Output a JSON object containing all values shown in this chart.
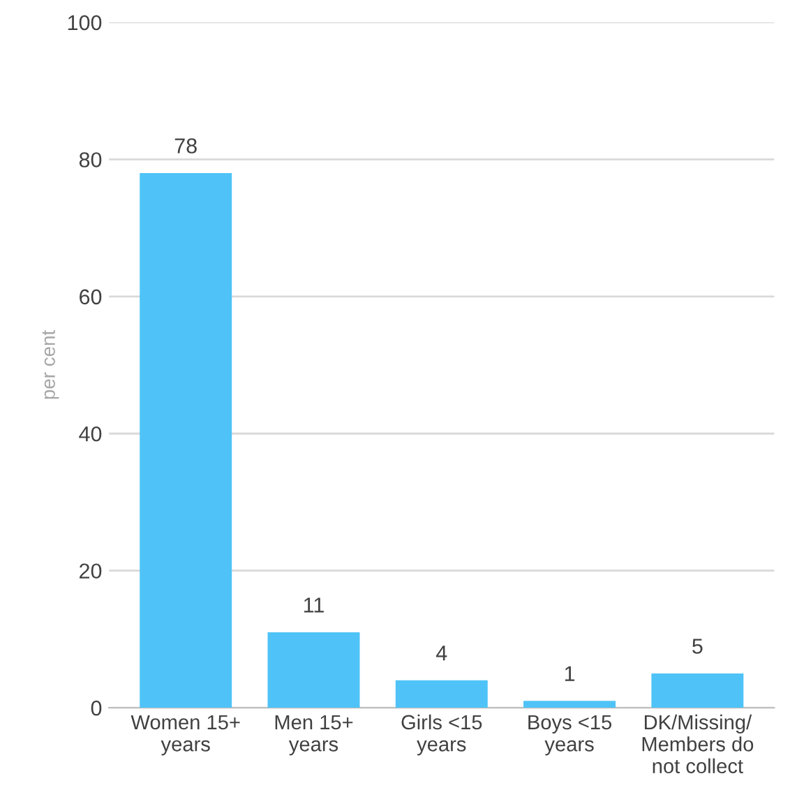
{
  "chart_data": {
    "type": "bar",
    "ylabel": "per cent",
    "categories": [
      "Women 15+\nyears",
      "Men 15+\nyears",
      "Girls <15\nyears",
      "Boys <15\nyears",
      "DK/Missing/\nMembers do\nnot collect"
    ],
    "values": [
      78,
      11,
      4,
      1,
      5
    ],
    "color": "#4fc3f7",
    "ylim": [
      0,
      100
    ],
    "yticks": [
      0,
      20,
      40,
      60,
      80,
      100
    ],
    "grid": "y",
    "data_labels": true
  }
}
